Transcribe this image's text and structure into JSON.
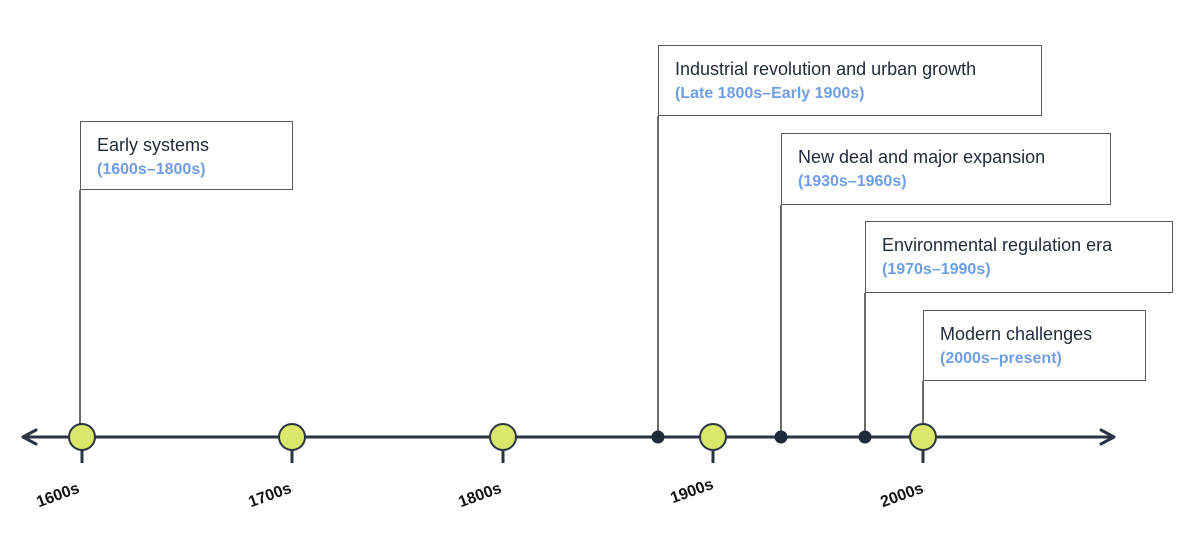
{
  "colors": {
    "axis": "#2a3442",
    "major_marker_fill": "#d9e76a",
    "major_marker_stroke": "#2a3442",
    "minor_marker_fill": "#1f2a3a",
    "range_text": "#6f9ee3",
    "box_border": "#595959"
  },
  "eras": [
    "1600s",
    "1700s",
    "1800s",
    "1900s",
    "2000s"
  ],
  "events": [
    {
      "title": "Early systems",
      "range": "(1600s–1800s)"
    },
    {
      "title": "Industrial revolution and urban growth",
      "range": "(Late 1800s–Early 1900s)"
    },
    {
      "title": "New deal and major expansion",
      "range": "(1930s–1960s)"
    },
    {
      "title": "Environmental regulation era",
      "range": "(1970s–1990s)"
    },
    {
      "title": "Modern challenges",
      "range": "(2000s–present)"
    }
  ]
}
